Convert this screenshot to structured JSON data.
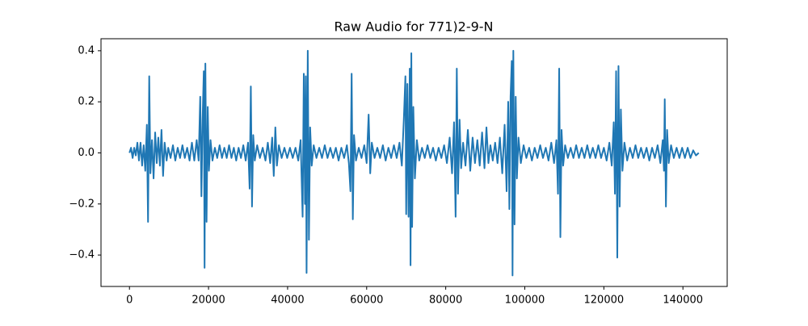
{
  "chart_data": {
    "type": "line",
    "title": "Raw Audio for 771)2-9-N",
    "color": "#1f77b4",
    "x": [
      0,
      400,
      800,
      1200,
      1600,
      2000,
      2400,
      2800,
      3200,
      3600,
      4000,
      4400,
      4700,
      5000,
      5300,
      5700,
      6100,
      6500,
      6900,
      7300,
      7700,
      8100,
      8500,
      8900,
      9400,
      9800,
      10400,
      11000,
      11600,
      12200,
      12800,
      13400,
      14000,
      14600,
      15200,
      15800,
      16400,
      17000,
      17500,
      17900,
      18200,
      18500,
      18800,
      19000,
      19200,
      19500,
      19800,
      20100,
      20500,
      21000,
      21600,
      22200,
      22800,
      23400,
      24000,
      24600,
      25200,
      25800,
      26400,
      27000,
      27600,
      28200,
      28800,
      29400,
      30000,
      30400,
      30700,
      31000,
      31300,
      31700,
      32300,
      33000,
      33700,
      34400,
      35000,
      35600,
      36100,
      36500,
      36900,
      37300,
      37800,
      38500,
      39200,
      39900,
      40600,
      41300,
      42000,
      42700,
      43300,
      43800,
      44100,
      44400,
      44600,
      44800,
      45100,
      45400,
      45700,
      46100,
      46600,
      47300,
      48000,
      48700,
      49400,
      50100,
      50800,
      51500,
      52200,
      52900,
      53600,
      54300,
      55000,
      55500,
      55900,
      56200,
      56500,
      56800,
      57300,
      58000,
      58700,
      59400,
      60000,
      60500,
      60900,
      61300,
      62000,
      62700,
      63400,
      64100,
      64800,
      65500,
      66200,
      66900,
      67600,
      68300,
      68900,
      69400,
      69800,
      70000,
      70300,
      70600,
      70900,
      71100,
      71300,
      71500,
      71800,
      72200,
      72700,
      73300,
      74000,
      74700,
      75400,
      76100,
      76800,
      77500,
      78200,
      78900,
      79600,
      80300,
      81000,
      81600,
      82100,
      82500,
      82800,
      83100,
      83500,
      83900,
      84400,
      85000,
      85600,
      86200,
      86800,
      87400,
      88000,
      88600,
      89200,
      89800,
      90300,
      90800,
      91300,
      91900,
      92500,
      93100,
      93700,
      94300,
      94900,
      95400,
      95800,
      96100,
      96400,
      96700,
      96900,
      97100,
      97400,
      97700,
      98000,
      98400,
      99000,
      99700,
      100400,
      101100,
      101800,
      102500,
      103200,
      103900,
      104600,
      105300,
      106000,
      106700,
      107400,
      108000,
      108400,
      108700,
      109000,
      109300,
      109700,
      110200,
      110900,
      111600,
      112300,
      113000,
      113700,
      114400,
      115100,
      115800,
      116500,
      117200,
      117900,
      118600,
      119300,
      120000,
      120700,
      121400,
      122000,
      122500,
      122800,
      123100,
      123400,
      123700,
      124000,
      124300,
      124700,
      125200,
      125900,
      126600,
      127300,
      128000,
      128700,
      129400,
      130100,
      130800,
      131500,
      132200,
      132900,
      133600,
      134300,
      134900,
      135200,
      135400,
      135700,
      136000,
      136400,
      137000,
      137700,
      138400,
      139100,
      139800,
      140500,
      141200,
      141900,
      142600,
      143300,
      144000
    ],
    "values": [
      0.0,
      0.02,
      -0.02,
      0.02,
      -0.01,
      0.04,
      -0.03,
      0.04,
      -0.05,
      0.03,
      -0.07,
      0.11,
      -0.27,
      0.3,
      -0.08,
      0.05,
      -0.1,
      0.08,
      -0.04,
      0.06,
      -0.05,
      0.09,
      -0.09,
      0.04,
      -0.03,
      0.02,
      -0.02,
      0.03,
      -0.03,
      0.02,
      -0.02,
      0.03,
      -0.02,
      0.02,
      -0.03,
      0.04,
      -0.03,
      0.05,
      -0.03,
      0.22,
      -0.17,
      0.13,
      0.32,
      -0.45,
      0.35,
      -0.27,
      0.18,
      -0.07,
      0.05,
      -0.03,
      0.02,
      -0.02,
      0.03,
      -0.02,
      0.02,
      -0.02,
      0.03,
      -0.02,
      0.02,
      -0.03,
      0.02,
      -0.02,
      0.03,
      -0.03,
      0.04,
      -0.14,
      0.26,
      -0.21,
      0.07,
      -0.03,
      0.03,
      -0.02,
      0.02,
      -0.03,
      0.04,
      -0.04,
      0.06,
      -0.09,
      0.1,
      -0.05,
      0.03,
      -0.02,
      0.02,
      -0.02,
      0.02,
      -0.02,
      0.02,
      -0.03,
      0.05,
      -0.25,
      0.31,
      -0.2,
      0.3,
      -0.47,
      0.4,
      -0.34,
      0.1,
      -0.05,
      0.03,
      -0.02,
      0.02,
      -0.02,
      0.03,
      -0.02,
      0.02,
      -0.02,
      0.02,
      -0.03,
      0.02,
      -0.02,
      0.03,
      -0.04,
      -0.15,
      0.31,
      -0.26,
      0.07,
      -0.03,
      0.02,
      -0.02,
      0.03,
      -0.04,
      0.15,
      -0.08,
      0.04,
      -0.02,
      0.02,
      -0.02,
      0.03,
      -0.03,
      0.02,
      -0.02,
      0.03,
      -0.02,
      0.04,
      -0.05,
      0.13,
      0.3,
      -0.24,
      0.27,
      -0.25,
      0.33,
      -0.44,
      0.39,
      -0.29,
      0.18,
      -0.1,
      0.05,
      -0.03,
      0.02,
      -0.02,
      0.03,
      -0.02,
      0.02,
      -0.03,
      0.02,
      -0.02,
      0.03,
      -0.04,
      0.06,
      -0.08,
      0.12,
      -0.25,
      0.33,
      -0.16,
      0.13,
      -0.06,
      0.04,
      -0.05,
      0.09,
      -0.07,
      0.06,
      -0.04,
      0.05,
      -0.05,
      0.08,
      -0.06,
      0.1,
      -0.04,
      0.03,
      -0.03,
      0.04,
      -0.04,
      0.06,
      -0.08,
      0.11,
      -0.15,
      0.2,
      -0.22,
      0.22,
      0.36,
      -0.48,
      0.4,
      -0.28,
      0.22,
      -0.1,
      0.06,
      -0.04,
      0.03,
      -0.02,
      0.02,
      -0.03,
      0.02,
      -0.02,
      0.03,
      -0.02,
      0.02,
      -0.03,
      0.04,
      -0.04,
      0.05,
      -0.16,
      0.33,
      -0.33,
      0.09,
      -0.05,
      0.03,
      -0.02,
      0.02,
      -0.02,
      0.03,
      -0.02,
      0.02,
      -0.02,
      0.03,
      -0.02,
      0.02,
      -0.02,
      0.03,
      -0.02,
      0.02,
      -0.03,
      0.04,
      -0.05,
      0.12,
      -0.16,
      0.32,
      -0.41,
      0.34,
      -0.21,
      0.17,
      -0.07,
      0.04,
      -0.03,
      0.02,
      -0.02,
      0.03,
      -0.02,
      0.02,
      -0.02,
      0.02,
      -0.03,
      0.02,
      -0.02,
      0.03,
      -0.04,
      0.05,
      -0.07,
      0.21,
      -0.21,
      0.09,
      -0.04,
      0.03,
      -0.02,
      0.02,
      -0.02,
      0.02,
      -0.02,
      0.02,
      -0.02,
      0.01,
      -0.01,
      0.0
    ],
    "xlim": [
      -7200,
      151200
    ],
    "ylim": [
      -0.523,
      0.447
    ],
    "xticks": [
      0,
      20000,
      40000,
      60000,
      80000,
      100000,
      120000,
      140000
    ],
    "yticks": [
      {
        "value": -0.4,
        "label": "−0.4"
      },
      {
        "value": -0.2,
        "label": "−0.2"
      },
      {
        "value": 0,
        "label": "0.0"
      },
      {
        "value": 0.2,
        "label": "0.2"
      },
      {
        "value": 0.4,
        "label": "0.4"
      }
    ]
  }
}
